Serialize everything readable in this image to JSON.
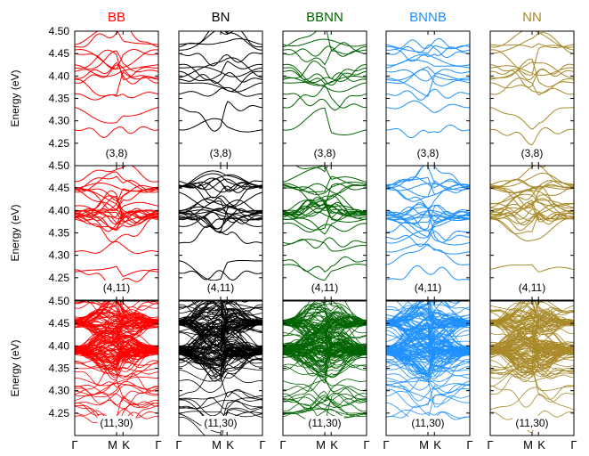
{
  "chart_data": {
    "type": "line",
    "figure_kind": "band-structure panel grid",
    "columns": [
      {
        "label": "BB",
        "color": "#ff0000"
      },
      {
        "label": "BN",
        "color": "#000000"
      },
      {
        "label": "BBNN",
        "color": "#006400"
      },
      {
        "label": "BNNB",
        "color": "#1e90ff"
      },
      {
        "label": "NN",
        "color": "#a88a2a"
      }
    ],
    "rows": [
      {
        "label": "(3,8)",
        "ylabel": "Energy (eV)",
        "ylim": [
          4.2,
          4.5
        ],
        "n_bands": 14
      },
      {
        "label": "(4,11)",
        "ylabel": "Energy (eV)",
        "ylim": [
          4.2,
          4.5
        ],
        "n_bands": 26
      },
      {
        "label": "(11,30)",
        "ylabel": "Energy (eV)",
        "ylim": [
          4.2,
          4.5
        ],
        "n_bands": 140
      }
    ],
    "yticks": [
      "4.50",
      "4.45",
      "4.40",
      "4.35",
      "4.30",
      "4.25"
    ],
    "ytick_values": [
      4.5,
      4.45,
      4.4,
      4.35,
      4.3,
      4.25
    ],
    "xticks": [
      "Γ",
      "M",
      "K",
      "Γ"
    ],
    "xtick_positions": [
      0,
      0.5,
      0.577,
      1
    ],
    "grid": false,
    "legend": "column titles above panels"
  }
}
